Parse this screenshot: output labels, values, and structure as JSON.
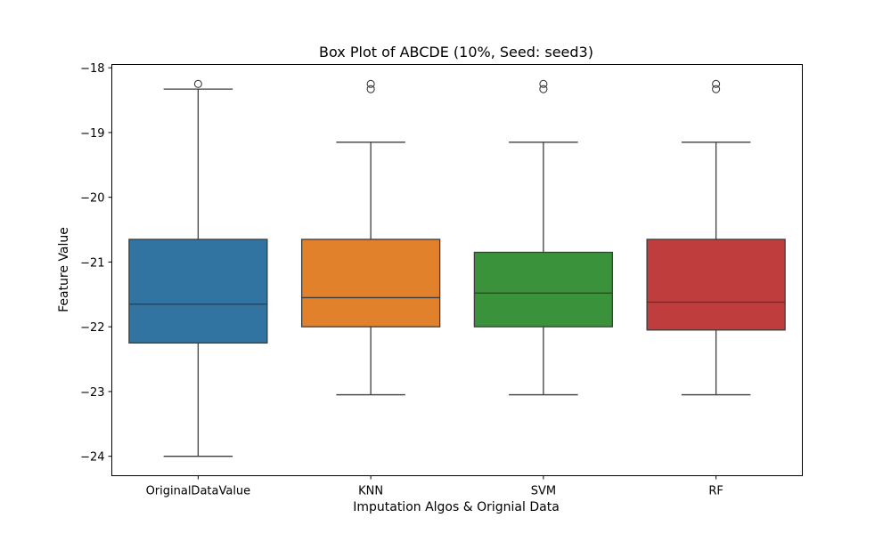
{
  "chart_data": {
    "type": "box",
    "title": "Box Plot of ABCDE (10%, Seed: seed3)",
    "xlabel": "Imputation Algos & Orignial Data",
    "ylabel": "Feature Value",
    "ylim": [
      -24.3,
      -17.95
    ],
    "yticks": [
      -24,
      -23,
      -22,
      -21,
      -20,
      -19,
      -18
    ],
    "ytick_labels": [
      "−24",
      "−23",
      "−22",
      "−21",
      "−20",
      "−19",
      "−18"
    ],
    "grid": false,
    "categories": [
      "OriginalDataValue",
      "KNN",
      "SVM",
      "RF"
    ],
    "series": [
      {
        "category": "OriginalDataValue",
        "color": "#3274a1",
        "whisker_low": -24.0,
        "q1": -22.25,
        "median": -21.65,
        "q3": -20.65,
        "whisker_high": -18.33,
        "outliers": [
          -18.25
        ]
      },
      {
        "category": "KNN",
        "color": "#e1812c",
        "whisker_low": -23.05,
        "q1": -22.0,
        "median": -21.55,
        "q3": -20.65,
        "whisker_high": -19.15,
        "outliers": [
          -18.25,
          -18.33
        ]
      },
      {
        "category": "SVM",
        "color": "#3a923a",
        "whisker_low": -23.05,
        "q1": -22.0,
        "median": -21.48,
        "q3": -20.85,
        "whisker_high": -19.15,
        "outliers": [
          -18.25,
          -18.33
        ]
      },
      {
        "category": "RF",
        "color": "#c03d3e",
        "whisker_low": -23.05,
        "q1": -22.05,
        "median": -21.62,
        "q3": -20.65,
        "whisker_high": -19.15,
        "outliers": [
          -18.25,
          -18.33
        ]
      }
    ]
  }
}
